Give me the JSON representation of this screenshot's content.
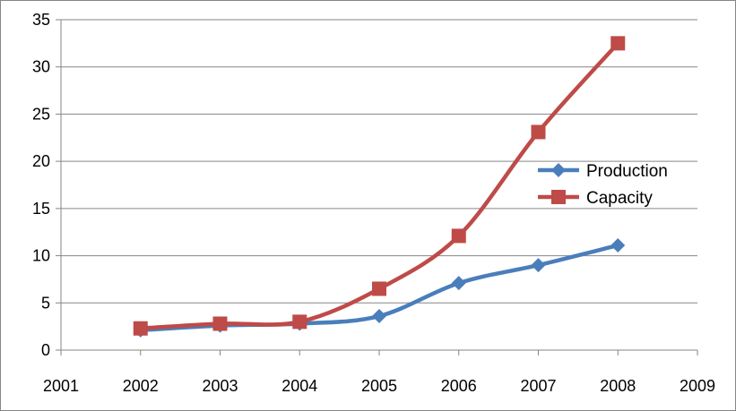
{
  "chart_data": {
    "type": "line",
    "title": "",
    "xlabel": "",
    "ylabel": "",
    "xlim": [
      2001,
      2009
    ],
    "ylim": [
      0,
      35
    ],
    "x_ticks": [
      "2001",
      "2002",
      "2003",
      "2004",
      "2005",
      "2006",
      "2007",
      "2008",
      "2009"
    ],
    "y_ticks": [
      "0",
      "5",
      "10",
      "15",
      "20",
      "25",
      "30",
      "35"
    ],
    "grid": "horizontal",
    "legend_position": "right",
    "smooth": true,
    "x": [
      2002,
      2003,
      2004,
      2005,
      2006,
      2007,
      2008
    ],
    "series": [
      {
        "name": "Production",
        "color": "#4a7ebb",
        "marker": "diamond",
        "values": [
          2.1,
          2.6,
          2.8,
          3.6,
          7.1,
          9.0,
          11.1
        ]
      },
      {
        "name": "Capacity",
        "color": "#be4b48",
        "marker": "square",
        "values": [
          2.3,
          2.8,
          3.0,
          6.5,
          12.1,
          23.1,
          32.5
        ]
      }
    ]
  }
}
